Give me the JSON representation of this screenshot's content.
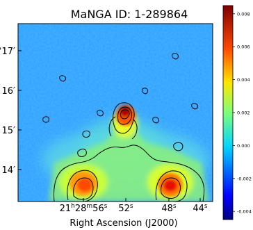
{
  "chart_data": {
    "type": "heatmap",
    "title": "MaNGA ID: 1-289864",
    "xlabel": "Right Ascension (J2000)",
    "ylabel": "",
    "x_ticks": [
      {
        "h": "21",
        "m": "28",
        "s": "56",
        "label": "21h28m56s"
      },
      {
        "h": "",
        "m": "",
        "s": "52",
        "label": "52s"
      },
      {
        "h": "",
        "m": "",
        "s": "48",
        "label": "48s"
      },
      {
        "h": "",
        "m": "",
        "s": "44",
        "label": "44s"
      }
    ],
    "y_ticks": [
      "1°17′",
      "16′",
      "15′",
      "14′"
    ],
    "colorbar": {
      "ticks": [
        0.008,
        0.006,
        0.004,
        0.002,
        0.0,
        -0.002,
        -0.004
      ],
      "tick_labels": [
        "0.008",
        "0.006",
        "0.004",
        "0.002",
        "0.000",
        "-0.002",
        "-0.004"
      ],
      "range": [
        -0.0045,
        0.0085
      ],
      "colormap": "jet"
    },
    "features": [
      {
        "name": "central-peak",
        "ra_s": 52.3,
        "dec_arcmin": 15.55,
        "value": 0.008
      },
      {
        "name": "lower-left-blob",
        "ra_s": 55.3,
        "dec_arcmin": 13.75,
        "value": 0.0065
      },
      {
        "name": "lower-right-blob",
        "ra_s": 46.6,
        "dec_arcmin": 13.72,
        "value": 0.0075
      }
    ],
    "contours": true,
    "grid": false
  },
  "colors": {
    "background_field": "#2aa0ff",
    "frame": "#000000"
  }
}
